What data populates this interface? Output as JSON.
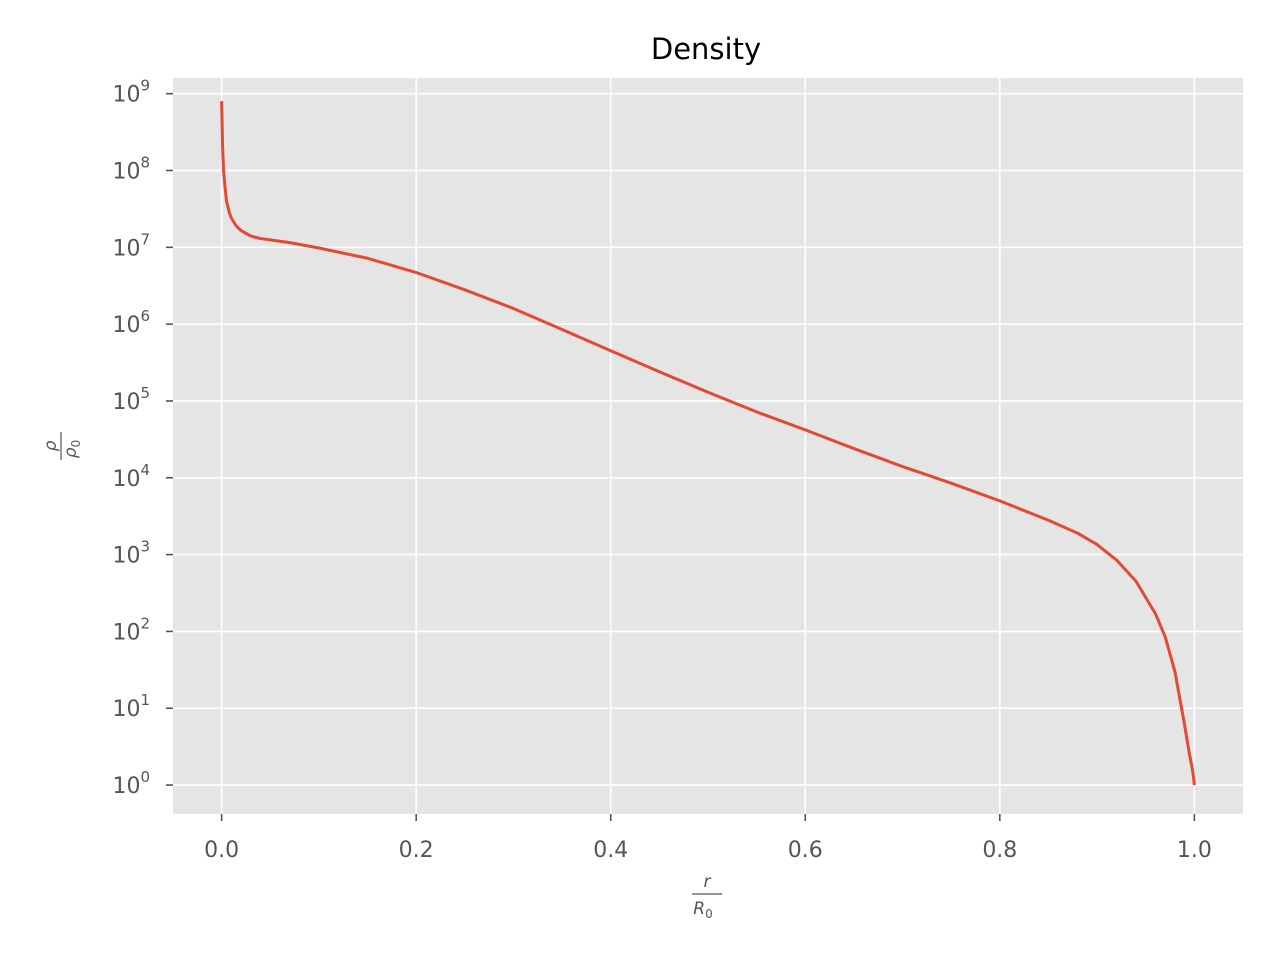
{
  "chart_data": {
    "type": "line",
    "title": "Density",
    "xlabel": {
      "numerator": "r",
      "denominator_base": "R",
      "denominator_sub": "0"
    },
    "ylabel": {
      "numerator": "ρ",
      "denominator_base": "ρ",
      "denominator_sub": "0"
    },
    "xlim": [
      -0.05,
      1.05
    ],
    "ylim": [
      0.42,
      1600000000.0
    ],
    "yscale": "log",
    "grid": true,
    "xticks": [
      0.0,
      0.2,
      0.4,
      0.6,
      0.8,
      1.0
    ],
    "xtick_labels": [
      "0.0",
      "0.2",
      "0.4",
      "0.6",
      "0.8",
      "1.0"
    ],
    "yticks": [
      1,
      10,
      100,
      1000,
      10000,
      100000,
      1000000,
      10000000,
      100000000,
      1000000000
    ],
    "ytick_labels": [
      {
        "base": "10",
        "exp": "0"
      },
      {
        "base": "10",
        "exp": "1"
      },
      {
        "base": "10",
        "exp": "2"
      },
      {
        "base": "10",
        "exp": "3"
      },
      {
        "base": "10",
        "exp": "4"
      },
      {
        "base": "10",
        "exp": "5"
      },
      {
        "base": "10",
        "exp": "6"
      },
      {
        "base": "10",
        "exp": "7"
      },
      {
        "base": "10",
        "exp": "8"
      },
      {
        "base": "10",
        "exp": "9"
      }
    ],
    "colors": {
      "line": "#E24A33",
      "background": "#E5E5E5",
      "grid": "#FFFFFF"
    },
    "series": [
      {
        "x": [
          0.0,
          0.0005,
          0.001,
          0.002,
          0.003,
          0.005,
          0.008,
          0.01,
          0.015,
          0.02,
          0.03,
          0.04,
          0.05,
          0.07,
          0.1,
          0.15,
          0.2,
          0.25,
          0.3,
          0.35,
          0.4,
          0.45,
          0.5,
          0.55,
          0.6,
          0.65,
          0.7,
          0.75,
          0.8,
          0.85,
          0.88,
          0.9,
          0.92,
          0.94,
          0.96,
          0.97,
          0.98,
          0.99,
          0.995,
          0.998,
          0.999,
          1.0
        ],
        "y": [
          800000000,
          400000000,
          200000000,
          100000000,
          70000000,
          40000000,
          28000000,
          24000000,
          19000000,
          16500000,
          14000000,
          13000000,
          12500000,
          11500000,
          9800000,
          7200000,
          4700000,
          2800000,
          1600000,
          850000,
          450000,
          240000,
          130000,
          72000,
          42000,
          24000,
          14000,
          8500,
          5000,
          2800,
          1900,
          1350,
          850,
          450,
          170,
          85,
          30,
          6,
          2.5,
          1.6,
          1.3,
          1.0
        ]
      }
    ]
  }
}
